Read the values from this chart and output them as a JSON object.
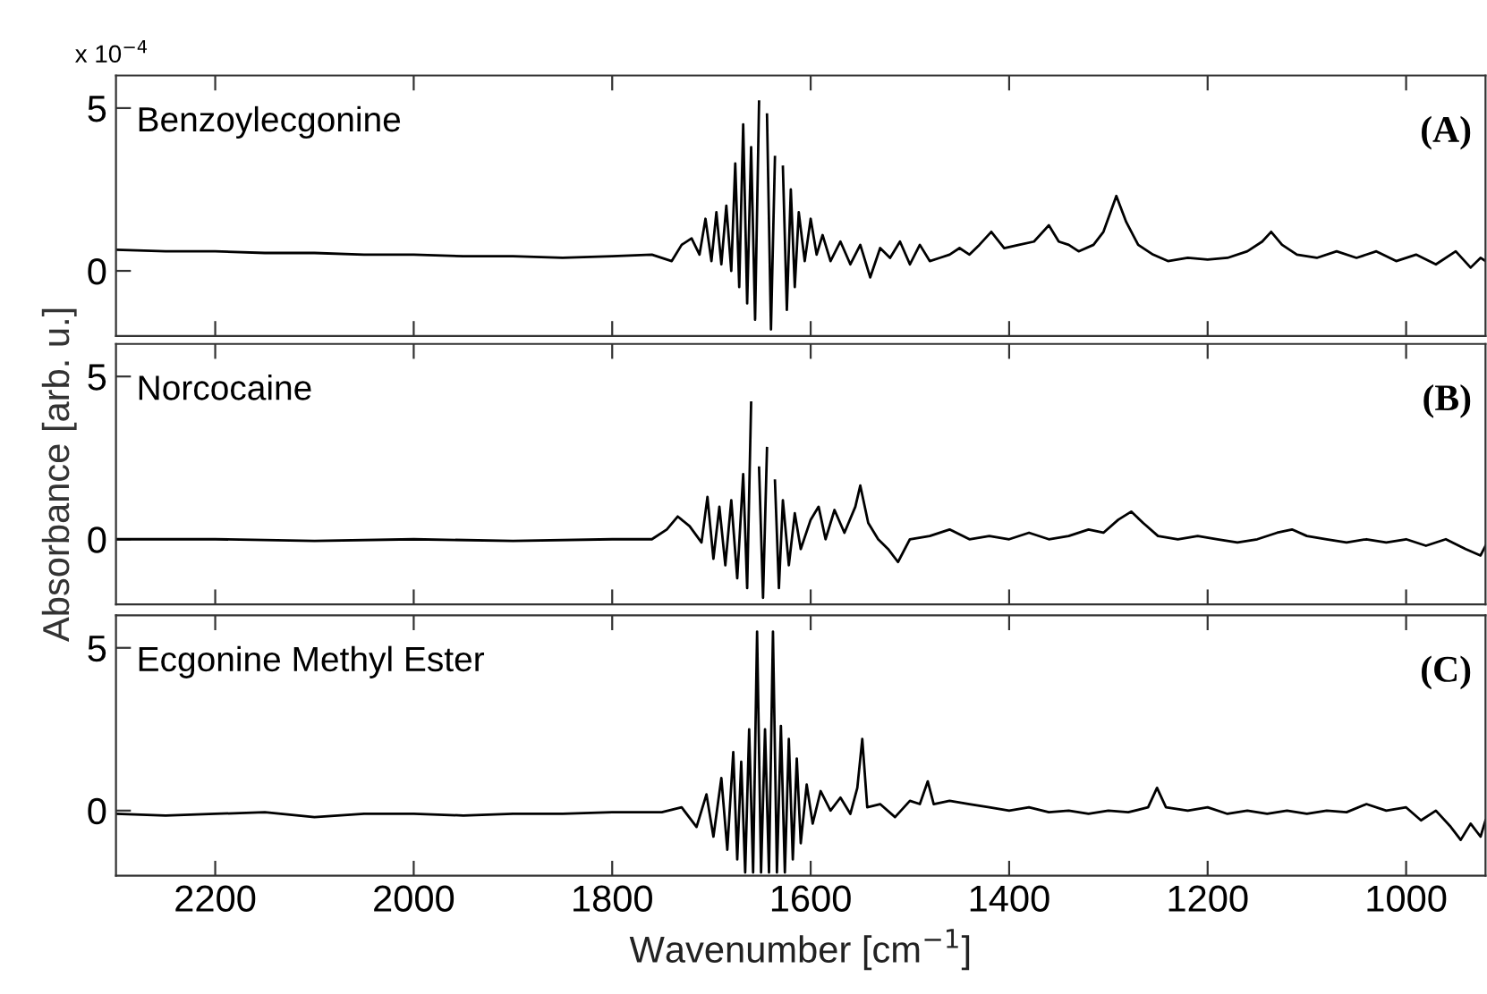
{
  "chart_data": [
    {
      "type": "line",
      "tick_labels": "y",
      "xlim": [
        2300,
        920
      ],
      "xticks": [
        2200,
        2000,
        1800,
        1600,
        1400,
        1200,
        1000
      ],
      "ylim": [
        -2,
        6
      ],
      "yticks": [
        0,
        5
      ],
      "annotations": [
        "x 10$^{−4}$",
        "Benzoylecgonine",
        "(A)"
      ],
      "x": [
        2300,
        2250,
        2200,
        2150,
        2100,
        2050,
        2000,
        1950,
        1900,
        1850,
        1800,
        1760,
        1740,
        1730,
        1720,
        1712,
        1706,
        1700,
        1695,
        1690,
        1685,
        1680,
        1676,
        1672,
        1668,
        1664,
        1660,
        1656,
        1652,
        1648,
        1644,
        1640,
        1636,
        1632,
        1628,
        1624,
        1620,
        1616,
        1612,
        1606,
        1600,
        1594,
        1588,
        1580,
        1570,
        1560,
        1550,
        1540,
        1530,
        1520,
        1510,
        1500,
        1490,
        1480,
        1470,
        1460,
        1450,
        1440,
        1430,
        1418,
        1405,
        1390,
        1375,
        1360,
        1350,
        1340,
        1330,
        1315,
        1305,
        1292,
        1282,
        1270,
        1255,
        1240,
        1220,
        1200,
        1180,
        1160,
        1145,
        1136,
        1125,
        1110,
        1090,
        1070,
        1050,
        1030,
        1010,
        990,
        970,
        950,
        935,
        925,
        920
      ],
      "series": [
        {
          "color": "#000000",
          "values": [
            0.65,
            0.6,
            0.6,
            0.55,
            0.55,
            0.5,
            0.5,
            0.45,
            0.45,
            0.4,
            0.45,
            0.5,
            0.3,
            0.8,
            1.0,
            0.5,
            1.6,
            0.3,
            1.8,
            0.2,
            2.0,
            0.0,
            3.3,
            -0.5,
            4.5,
            -1.0,
            3.8,
            -1.5,
            5.2,
            null,
            4.8,
            -1.8,
            3.5,
            null,
            3.2,
            -1.2,
            2.5,
            -0.5,
            1.8,
            0.3,
            1.6,
            0.5,
            1.1,
            0.3,
            0.9,
            0.2,
            0.8,
            -0.2,
            0.7,
            0.4,
            0.9,
            0.2,
            0.8,
            0.3,
            0.4,
            0.5,
            0.7,
            0.5,
            0.8,
            1.2,
            0.7,
            0.8,
            0.9,
            1.4,
            0.9,
            0.8,
            0.6,
            0.8,
            1.2,
            2.3,
            1.5,
            0.8,
            0.5,
            0.3,
            0.4,
            0.35,
            0.4,
            0.6,
            0.9,
            1.2,
            0.8,
            0.5,
            0.4,
            0.6,
            0.4,
            0.6,
            0.3,
            0.5,
            0.2,
            0.6,
            0.1,
            0.4,
            0.3
          ]
        }
      ]
    },
    {
      "type": "line",
      "tick_labels": "y",
      "ylabel": "Absorbance [arb. u.]",
      "xlim": [
        2300,
        920
      ],
      "xticks": [
        2200,
        2000,
        1800,
        1600,
        1400,
        1200,
        1000
      ],
      "ylim": [
        -2,
        6
      ],
      "yticks": [
        0,
        5
      ],
      "annotations": [
        "Norcocaine",
        "(B)"
      ],
      "x": [
        2300,
        2200,
        2100,
        2000,
        1900,
        1800,
        1760,
        1745,
        1734,
        1722,
        1710,
        1704,
        1698,
        1692,
        1686,
        1680,
        1674,
        1668,
        1664,
        1660,
        1656,
        1652,
        1648,
        1644,
        1640,
        1636,
        1632,
        1628,
        1622,
        1616,
        1610,
        1600,
        1592,
        1585,
        1576,
        1566,
        1555,
        1550,
        1542,
        1532,
        1522,
        1512,
        1500,
        1480,
        1460,
        1440,
        1420,
        1400,
        1380,
        1360,
        1340,
        1320,
        1305,
        1290,
        1277,
        1265,
        1250,
        1230,
        1210,
        1190,
        1170,
        1150,
        1130,
        1115,
        1100,
        1080,
        1060,
        1040,
        1020,
        1000,
        980,
        960,
        940,
        925,
        920
      ],
      "series": [
        {
          "color": "#000000",
          "values": [
            0.0,
            0.0,
            -0.05,
            0.0,
            -0.05,
            0.0,
            0.0,
            0.3,
            0.7,
            0.4,
            -0.1,
            1.3,
            -0.6,
            1.0,
            -0.8,
            1.2,
            -1.2,
            2.0,
            -1.5,
            4.2,
            null,
            2.2,
            -1.8,
            2.8,
            null,
            1.8,
            -1.5,
            1.2,
            -0.8,
            0.8,
            -0.3,
            0.6,
            1.0,
            0.0,
            0.9,
            0.2,
            1.0,
            1.65,
            0.5,
            0.0,
            -0.3,
            -0.7,
            0.0,
            0.1,
            0.3,
            0.0,
            0.1,
            0.0,
            0.2,
            0.0,
            0.1,
            0.3,
            0.2,
            0.6,
            0.85,
            0.5,
            0.1,
            0.0,
            0.1,
            0.0,
            -0.1,
            0.0,
            0.2,
            0.3,
            0.1,
            0.0,
            -0.1,
            0.0,
            -0.1,
            0.0,
            -0.2,
            0.0,
            -0.3,
            -0.5,
            -0.2
          ]
        }
      ]
    },
    {
      "type": "line",
      "xlabel": "Wavenumber [cm$^{−1}$]",
      "xlim": [
        2300,
        920
      ],
      "xticks": [
        2200,
        2000,
        1800,
        1600,
        1400,
        1200,
        1000
      ],
      "ylim": [
        -2,
        6
      ],
      "yticks": [
        0,
        5
      ],
      "annotations": [
        "Ecgonine Methyl Ester",
        "(C)"
      ],
      "x": [
        2300,
        2250,
        2200,
        2150,
        2100,
        2050,
        2000,
        1950,
        1900,
        1850,
        1800,
        1750,
        1730,
        1715,
        1705,
        1698,
        1690,
        1684,
        1678,
        1674,
        1670,
        1666,
        1662,
        1658,
        1654,
        1650,
        1646,
        1642,
        1638,
        1634,
        1630,
        1626,
        1622,
        1618,
        1614,
        1610,
        1604,
        1598,
        1590,
        1580,
        1570,
        1560,
        1553,
        1548,
        1543,
        1530,
        1515,
        1500,
        1490,
        1482,
        1476,
        1460,
        1440,
        1420,
        1400,
        1380,
        1360,
        1340,
        1320,
        1300,
        1280,
        1260,
        1251,
        1242,
        1220,
        1200,
        1180,
        1160,
        1140,
        1120,
        1100,
        1080,
        1060,
        1040,
        1020,
        1000,
        985,
        970,
        955,
        945,
        935,
        925,
        920
      ],
      "series": [
        {
          "color": "#000000",
          "values": [
            -0.1,
            -0.15,
            -0.1,
            -0.05,
            -0.2,
            -0.1,
            -0.1,
            -0.15,
            -0.1,
            -0.1,
            -0.05,
            -0.05,
            0.1,
            -0.5,
            0.5,
            -0.8,
            1.0,
            -1.2,
            1.8,
            -1.5,
            1.5,
            -1.9,
            2.5,
            -1.9,
            5.5,
            -1.9,
            2.5,
            -1.9,
            5.5,
            -1.9,
            2.6,
            -1.9,
            2.2,
            -1.5,
            1.6,
            -1.0,
            0.8,
            -0.4,
            0.6,
            0.0,
            0.4,
            -0.1,
            0.7,
            2.2,
            0.1,
            0.2,
            -0.2,
            0.3,
            0.2,
            0.9,
            0.2,
            0.3,
            0.2,
            0.1,
            0.0,
            0.1,
            -0.05,
            0.0,
            -0.1,
            0.0,
            -0.05,
            0.1,
            0.7,
            0.1,
            0.0,
            0.1,
            -0.1,
            0.0,
            -0.1,
            0.0,
            -0.1,
            0.0,
            -0.05,
            0.2,
            0.0,
            0.1,
            -0.3,
            0.0,
            -0.5,
            -0.9,
            -0.4,
            -0.8,
            -0.3
          ]
        }
      ]
    }
  ]
}
